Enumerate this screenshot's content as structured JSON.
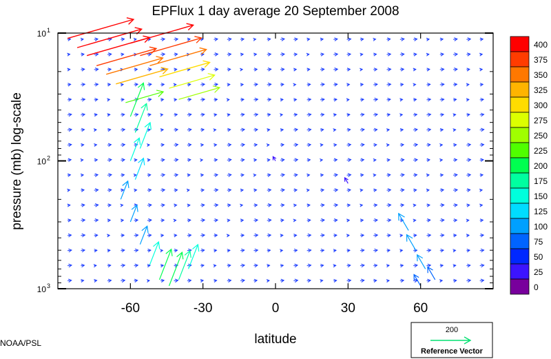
{
  "chart_data": {
    "type": "vector-field",
    "title": "EPFlux  1 day average  20 September 2008",
    "xlabel": "latitude",
    "ylabel": "pressure (mb)  log-scale",
    "xlim": [
      -90,
      90
    ],
    "ylim_mb": [
      1000,
      10
    ],
    "y_scale": "log",
    "x_ticks": [
      -60,
      -30,
      0,
      30,
      60
    ],
    "x_tick_labels": [
      "-60",
      "-30",
      "0",
      "30",
      "60"
    ],
    "y_ticks": [
      {
        "value": 10,
        "base": "10",
        "exp": "1"
      },
      {
        "value": 100,
        "base": "10",
        "exp": "2"
      },
      {
        "value": 1000,
        "base": "10",
        "exp": "3"
      }
    ],
    "colorbar": {
      "labels": [
        "400",
        "375",
        "350",
        "325",
        "300",
        "275",
        "250",
        "225",
        "200",
        "175",
        "150",
        "125",
        "100",
        "75",
        "50",
        "25",
        "0"
      ],
      "colors": [
        "#ff0000",
        "#ff3c00",
        "#ff7800",
        "#ffb400",
        "#ffdc00",
        "#dcff00",
        "#a0ff00",
        "#50ff00",
        "#00ff50",
        "#00ffa0",
        "#00ffdc",
        "#00dcff",
        "#00a0ff",
        "#0064ff",
        "#0028ff",
        "#3c14ff",
        "#78009c"
      ]
    },
    "reference_vector": {
      "magnitude": "200",
      "label": "Reference Vector",
      "color": "#00e070"
    },
    "credit": "NOAA/PSL",
    "vectors": [
      {
        "lat": -86,
        "p": 11,
        "mag": 420
      },
      {
        "lat": -82,
        "p": 13,
        "mag": 410
      },
      {
        "lat": -78,
        "p": 15,
        "mag": 400
      },
      {
        "lat": -74,
        "p": 18,
        "mag": 380
      },
      {
        "lat": -70,
        "p": 21,
        "mag": 360
      },
      {
        "lat": -66,
        "p": 25,
        "mag": 330
      },
      {
        "lat": -60,
        "p": 12,
        "mag": 400
      },
      {
        "lat": -56,
        "p": 15,
        "mag": 390
      },
      {
        "lat": -52,
        "p": 18,
        "mag": 360
      },
      {
        "lat": -48,
        "p": 22,
        "mag": 320
      },
      {
        "lat": -44,
        "p": 27,
        "mag": 290
      },
      {
        "lat": -40,
        "p": 33,
        "mag": 260
      },
      {
        "lat": -62,
        "p": 35,
        "mag": 240
      },
      {
        "lat": -60,
        "p": 45,
        "mag": 220
      },
      {
        "lat": -58,
        "p": 60,
        "mag": 190
      },
      {
        "lat": -56,
        "p": 80,
        "mag": 170
      },
      {
        "lat": -60,
        "p": 100,
        "mag": 150
      },
      {
        "lat": -58,
        "p": 140,
        "mag": 140
      },
      {
        "lat": -64,
        "p": 200,
        "mag": 120
      },
      {
        "lat": -60,
        "p": 300,
        "mag": 110
      },
      {
        "lat": -56,
        "p": 450,
        "mag": 120
      },
      {
        "lat": -52,
        "p": 650,
        "mag": 150
      },
      {
        "lat": -48,
        "p": 850,
        "mag": 200
      },
      {
        "lat": -44,
        "p": 950,
        "mag": 220
      },
      {
        "lat": -40,
        "p": 850,
        "mag": 190
      },
      {
        "lat": -36,
        "p": 700,
        "mag": 160
      },
      {
        "lat": 55,
        "p": 350,
        "mag": 120
      },
      {
        "lat": 58,
        "p": 500,
        "mag": 110
      },
      {
        "lat": 62,
        "p": 700,
        "mag": 100
      },
      {
        "lat": 66,
        "p": 850,
        "mag": 90
      },
      {
        "lat": 60,
        "p": 950,
        "mag": 80
      },
      {
        "lat": 30,
        "p": 150,
        "mag": 40
      },
      {
        "lat": 0,
        "p": 100,
        "mag": 30
      }
    ]
  }
}
